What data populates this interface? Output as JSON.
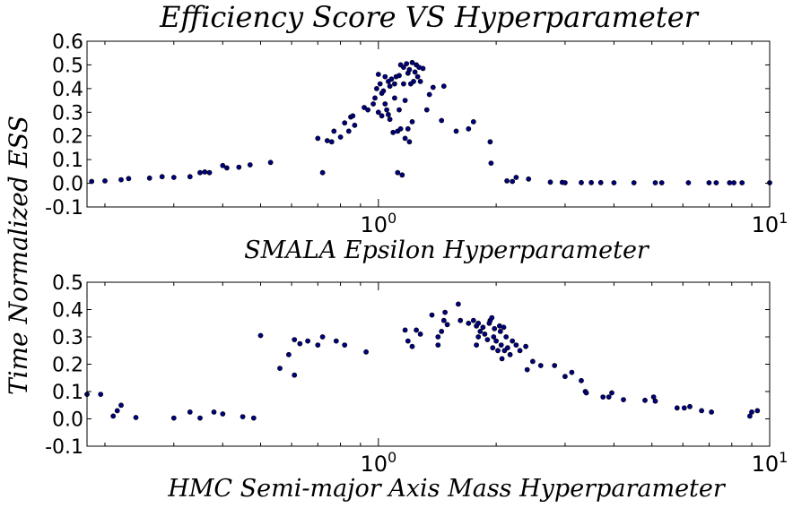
{
  "figure": {
    "title": "Efficiency Score VS Hyperparameter",
    "ylabel": "Time Normalized ESS"
  },
  "chart_data": [
    {
      "type": "scatter",
      "xlabel": "SMALA Epsilon Hyperparameter",
      "xscale": "log",
      "xlim": [
        0.18,
        10
      ],
      "ylim": [
        -0.1,
        0.6
      ],
      "yticks": [
        "-0.1",
        "0.0",
        "0.1",
        "0.2",
        "0.3",
        "0.4",
        "0.5",
        "0.6"
      ],
      "xticks": [
        {
          "value": 1,
          "base": "10",
          "exp": "0"
        },
        {
          "value": 10,
          "base": "10",
          "exp": "1"
        }
      ],
      "grid": false,
      "marker_color": "#00007f",
      "points": [
        [
          0.185,
          0.008
        ],
        [
          0.2,
          0.01
        ],
        [
          0.22,
          0.015
        ],
        [
          0.23,
          0.02
        ],
        [
          0.26,
          0.022
        ],
        [
          0.28,
          0.028
        ],
        [
          0.3,
          0.025
        ],
        [
          0.33,
          0.028
        ],
        [
          0.35,
          0.045
        ],
        [
          0.36,
          0.048
        ],
        [
          0.37,
          0.045
        ],
        [
          0.4,
          0.075
        ],
        [
          0.41,
          0.065
        ],
        [
          0.44,
          0.068
        ],
        [
          0.47,
          0.078
        ],
        [
          0.53,
          0.088
        ],
        [
          0.7,
          0.19
        ],
        [
          0.72,
          0.045
        ],
        [
          0.74,
          0.18
        ],
        [
          0.76,
          0.175
        ],
        [
          0.77,
          0.22
        ],
        [
          0.8,
          0.195
        ],
        [
          0.82,
          0.255
        ],
        [
          0.84,
          0.22
        ],
        [
          0.85,
          0.28
        ],
        [
          0.86,
          0.285
        ],
        [
          0.87,
          0.245
        ],
        [
          0.92,
          0.32
        ],
        [
          0.94,
          0.31
        ],
        [
          0.97,
          0.335
        ],
        [
          0.98,
          0.36
        ],
        [
          0.99,
          0.4
        ],
        [
          1.0,
          0.46
        ],
        [
          1.0,
          0.3
        ],
        [
          1.01,
          0.42
        ],
        [
          1.02,
          0.38
        ],
        [
          1.02,
          0.285
        ],
        [
          1.03,
          0.39
        ],
        [
          1.04,
          0.45
        ],
        [
          1.04,
          0.335
        ],
        [
          1.05,
          0.31
        ],
        [
          1.06,
          0.43
        ],
        [
          1.06,
          0.29
        ],
        [
          1.07,
          0.41
        ],
        [
          1.07,
          0.27
        ],
        [
          1.08,
          0.44
        ],
        [
          1.09,
          0.215
        ],
        [
          1.1,
          0.36
        ],
        [
          1.1,
          0.42
        ],
        [
          1.11,
          0.45
        ],
        [
          1.12,
          0.22
        ],
        [
          1.12,
          0.045
        ],
        [
          1.13,
          0.455
        ],
        [
          1.13,
          0.31
        ],
        [
          1.14,
          0.5
        ],
        [
          1.14,
          0.23
        ],
        [
          1.15,
          0.035
        ],
        [
          1.16,
          0.49
        ],
        [
          1.16,
          0.42
        ],
        [
          1.17,
          0.35
        ],
        [
          1.17,
          0.19
        ],
        [
          1.18,
          0.505
        ],
        [
          1.19,
          0.465
        ],
        [
          1.19,
          0.23
        ],
        [
          1.2,
          0.48
        ],
        [
          1.2,
          0.175
        ],
        [
          1.21,
          0.42
        ],
        [
          1.22,
          0.51
        ],
        [
          1.22,
          0.26
        ],
        [
          1.23,
          0.43
        ],
        [
          1.24,
          0.47
        ],
        [
          1.25,
          0.5
        ],
        [
          1.26,
          0.45
        ],
        [
          1.27,
          0.49
        ],
        [
          1.28,
          0.43
        ],
        [
          1.3,
          0.485
        ],
        [
          1.33,
          0.31
        ],
        [
          1.35,
          0.375
        ],
        [
          1.38,
          0.405
        ],
        [
          1.45,
          0.265
        ],
        [
          1.47,
          0.41
        ],
        [
          1.58,
          0.22
        ],
        [
          1.7,
          0.23
        ],
        [
          1.75,
          0.26
        ],
        [
          1.93,
          0.175
        ],
        [
          1.94,
          0.085
        ],
        [
          2.13,
          0.01
        ],
        [
          2.2,
          0.008
        ],
        [
          2.25,
          0.025
        ],
        [
          2.42,
          0.018
        ],
        [
          2.75,
          0.005
        ],
        [
          2.95,
          0.004
        ],
        [
          3.0,
          0.002
        ],
        [
          3.3,
          0.003
        ],
        [
          3.5,
          0.003
        ],
        [
          3.7,
          0.003
        ],
        [
          4.0,
          0.002
        ],
        [
          4.5,
          0.002
        ],
        [
          5.1,
          0.002
        ],
        [
          5.3,
          0.002
        ],
        [
          6.2,
          0.002
        ],
        [
          7.0,
          0.002
        ],
        [
          7.3,
          0.002
        ],
        [
          7.9,
          0.002
        ],
        [
          8.1,
          0.002
        ],
        [
          8.5,
          0.002
        ],
        [
          10.0,
          0.002
        ]
      ]
    },
    {
      "type": "scatter",
      "xlabel": "HMC Semi-major Axis Mass Hyperparameter",
      "xscale": "log",
      "xlim": [
        0.18,
        10
      ],
      "ylim": [
        -0.1,
        0.5
      ],
      "yticks": [
        "-0.1",
        "0.0",
        "0.1",
        "0.2",
        "0.3",
        "0.4",
        "0.5"
      ],
      "xticks": [
        {
          "value": 1,
          "base": "10",
          "exp": "0"
        },
        {
          "value": 10,
          "base": "10",
          "exp": "1"
        }
      ],
      "grid": false,
      "marker_color": "#00007f",
      "points": [
        [
          0.18,
          0.09
        ],
        [
          0.195,
          0.09
        ],
        [
          0.21,
          0.01
        ],
        [
          0.215,
          0.03
        ],
        [
          0.22,
          0.05
        ],
        [
          0.24,
          0.005
        ],
        [
          0.3,
          0.003
        ],
        [
          0.33,
          0.025
        ],
        [
          0.35,
          0.003
        ],
        [
          0.38,
          0.025
        ],
        [
          0.4,
          0.018
        ],
        [
          0.45,
          0.008
        ],
        [
          0.48,
          0.003
        ],
        [
          0.5,
          0.305
        ],
        [
          0.56,
          0.185
        ],
        [
          0.59,
          0.235
        ],
        [
          0.61,
          0.16
        ],
        [
          0.61,
          0.29
        ],
        [
          0.63,
          0.275
        ],
        [
          0.66,
          0.285
        ],
        [
          0.7,
          0.27
        ],
        [
          0.72,
          0.3
        ],
        [
          0.78,
          0.285
        ],
        [
          0.82,
          0.27
        ],
        [
          0.93,
          0.245
        ],
        [
          1.17,
          0.325
        ],
        [
          1.19,
          0.285
        ],
        [
          1.22,
          0.265
        ],
        [
          1.25,
          0.325
        ],
        [
          1.28,
          0.31
        ],
        [
          1.37,
          0.38
        ],
        [
          1.42,
          0.3
        ],
        [
          1.42,
          0.27
        ],
        [
          1.45,
          0.32
        ],
        [
          1.47,
          0.36
        ],
        [
          1.48,
          0.39
        ],
        [
          1.5,
          0.345
        ],
        [
          1.6,
          0.42
        ],
        [
          1.62,
          0.36
        ],
        [
          1.7,
          0.35
        ],
        [
          1.75,
          0.36
        ],
        [
          1.78,
          0.27
        ],
        [
          1.78,
          0.34
        ],
        [
          1.8,
          0.35
        ],
        [
          1.8,
          0.3
        ],
        [
          1.82,
          0.32
        ],
        [
          1.85,
          0.335
        ],
        [
          1.87,
          0.31
        ],
        [
          1.9,
          0.29
        ],
        [
          1.92,
          0.35
        ],
        [
          1.93,
          0.36
        ],
        [
          1.95,
          0.37
        ],
        [
          1.96,
          0.26
        ],
        [
          1.97,
          0.3
        ],
        [
          1.98,
          0.33
        ],
        [
          2.0,
          0.285
        ],
        [
          2.02,
          0.25
        ],
        [
          2.04,
          0.34
        ],
        [
          2.05,
          0.32
        ],
        [
          2.06,
          0.27
        ],
        [
          2.07,
          0.22
        ],
        [
          2.09,
          0.335
        ],
        [
          2.1,
          0.25
        ],
        [
          2.12,
          0.3
        ],
        [
          2.14,
          0.26
        ],
        [
          2.17,
          0.235
        ],
        [
          2.2,
          0.285
        ],
        [
          2.25,
          0.27
        ],
        [
          2.3,
          0.25
        ],
        [
          2.38,
          0.265
        ],
        [
          2.4,
          0.18
        ],
        [
          2.48,
          0.21
        ],
        [
          2.6,
          0.195
        ],
        [
          2.82,
          0.195
        ],
        [
          3.0,
          0.155
        ],
        [
          3.12,
          0.17
        ],
        [
          3.3,
          0.14
        ],
        [
          3.38,
          0.1
        ],
        [
          3.4,
          0.095
        ],
        [
          3.75,
          0.08
        ],
        [
          3.88,
          0.08
        ],
        [
          3.95,
          0.095
        ],
        [
          4.23,
          0.07
        ],
        [
          4.8,
          0.068
        ],
        [
          5.05,
          0.08
        ],
        [
          5.1,
          0.065
        ],
        [
          5.8,
          0.04
        ],
        [
          6.05,
          0.04
        ],
        [
          6.25,
          0.045
        ],
        [
          6.7,
          0.03
        ],
        [
          7.1,
          0.025
        ],
        [
          8.9,
          0.01
        ],
        [
          9.0,
          0.025
        ],
        [
          9.3,
          0.03
        ]
      ]
    }
  ]
}
